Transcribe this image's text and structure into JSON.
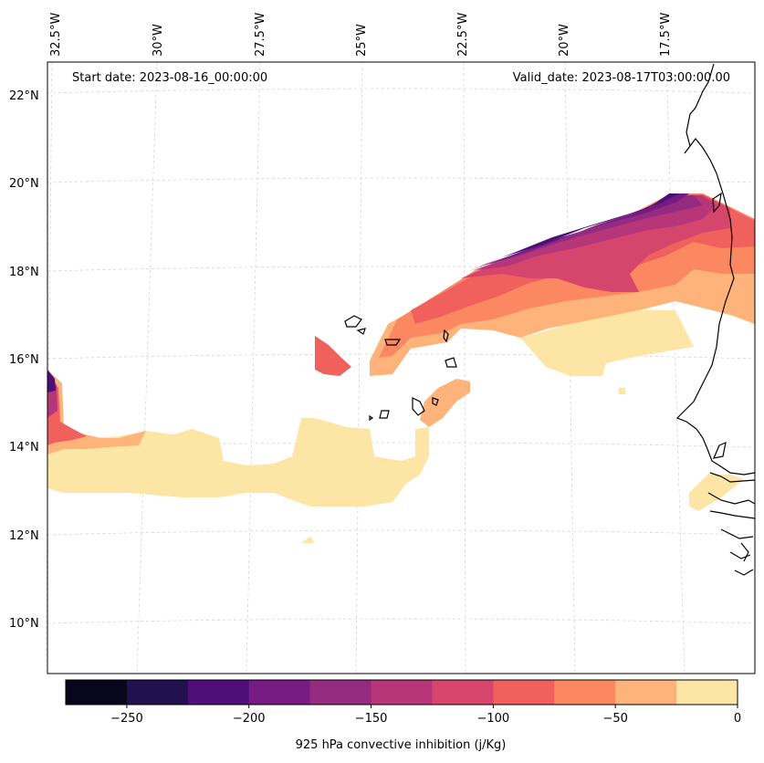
{
  "header": {
    "start_date": "Start date: 2023-08-16_00:00:00",
    "valid_date": "Valid_date: 2023-08-17T03:00:00.00"
  },
  "lon_labels": [
    "32.5°W",
    "30°W",
    "27.5°W",
    "25°W",
    "22.5°W",
    "20°W",
    "17.5°W"
  ],
  "lat_labels": [
    "22°N",
    "20°N",
    "18°N",
    "16°N",
    "14°N",
    "12°N",
    "10°N"
  ],
  "colorbar": {
    "label": "925 hPa convective inhibition (j/Kg)",
    "levels": [
      -275,
      -250,
      -225,
      -200,
      -175,
      -150,
      -125,
      -100,
      -75,
      -50,
      -25,
      0
    ],
    "colors": [
      "#07061c",
      "#21114e",
      "#4f0f7b",
      "#751b81",
      "#932c80",
      "#b63679",
      "#d6456c",
      "#f0605d",
      "#fb8861",
      "#feb37b",
      "#fde6a5"
    ],
    "ticks": [
      "−250",
      "−200",
      "−150",
      "−100",
      "−50",
      "0"
    ],
    "tick_values": [
      -250,
      -200,
      -150,
      -100,
      -50,
      0
    ]
  },
  "colors": {
    "coastline": "#000000",
    "grid": "#cccccc"
  }
}
